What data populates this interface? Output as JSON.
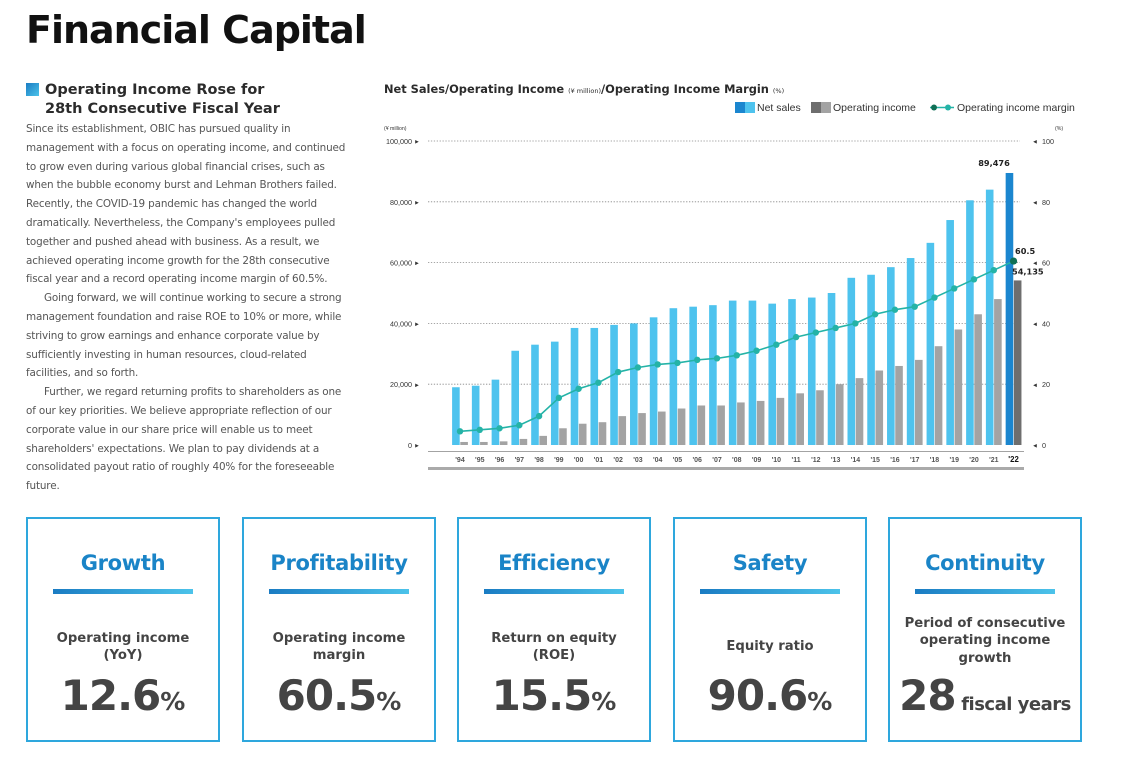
{
  "page": {
    "title": "Financial Capital"
  },
  "section": {
    "heading_line1": "Operating Income Rose for",
    "heading_line2": "28th Consecutive Fiscal Year",
    "paragraph1": "Since its establishment, OBIC has pursued quality in management with a focus on operating income, and continued to grow even during various global financial crises, such as when the bubble economy burst and Lehman Brothers failed. Recently, the COVID-19 pandemic has changed the world dramatically. Nevertheless, the Company's employees pulled together and pushed ahead with business. As a result, we achieved operating income growth for the 28th consecutive fiscal year and a record operating income margin of 60.5%.",
    "paragraph2": "Going forward, we will continue working to secure a strong management foundation and raise ROE to 10% or more, while striving to grow earnings and enhance corporate value by sufficiently investing in human resources, cloud-related facilities, and so forth.",
    "paragraph3": "Further, we regard returning profits to shareholders as one of our key priorities. We believe appropriate reflection of our corporate value in our share price will enable us to meet shareholders' expectations. We plan to pay dividends at a consolidated payout ratio of roughly 40% for the foreseeable future."
  },
  "chart_header": {
    "part1": "Net Sales/Operating Income ",
    "unit1": "(¥ million)",
    "part2": "/Operating Income Margin ",
    "unit2": "(%)"
  },
  "colors": {
    "net_sales": "#4ec3ee",
    "net_sales_latest": "#1b86cf",
    "operating_income": "#a3a3a3",
    "operating_income_latest": "#6e6e6e",
    "margin_line": "#24b3a7",
    "margin_latest": "#0f6f55",
    "axis": "#444444",
    "accent": "#1a84c7"
  },
  "chart_data": {
    "type": "bar",
    "categories": [
      "'94",
      "'95",
      "'96",
      "'97",
      "'98",
      "'99",
      "'00",
      "'01",
      "'02",
      "'03",
      "'04",
      "'05",
      "'06",
      "'07",
      "'08",
      "'09",
      "'10",
      "'11",
      "'12",
      "'13",
      "'14",
      "'15",
      "'16",
      "'17",
      "'18",
      "'19",
      "'20",
      "'21",
      "'22"
    ],
    "series": [
      {
        "name": "Net sales",
        "type": "bar",
        "axis": "left",
        "values": [
          19000,
          19500,
          21500,
          31000,
          33000,
          34000,
          38500,
          38500,
          39500,
          40000,
          42000,
          45000,
          45500,
          46000,
          47500,
          47500,
          46500,
          48000,
          48500,
          50000,
          55000,
          56000,
          58500,
          61500,
          66500,
          74000,
          80500,
          84000,
          89476
        ]
      },
      {
        "name": "Operating income",
        "type": "bar",
        "axis": "left",
        "values": [
          1000,
          1000,
          1200,
          2000,
          3000,
          5500,
          7000,
          7500,
          9500,
          10500,
          11000,
          12000,
          13000,
          13000,
          14000,
          14500,
          15500,
          17000,
          18000,
          20000,
          22000,
          24500,
          26000,
          28000,
          32500,
          38000,
          43000,
          48000,
          54135
        ]
      },
      {
        "name": "Operating income margin",
        "type": "line",
        "axis": "right",
        "values": [
          4.5,
          5,
          5.5,
          6.5,
          9.5,
          15.5,
          18.5,
          20.5,
          24,
          25.5,
          26.5,
          27,
          28,
          28.5,
          29.5,
          31,
          33,
          35.5,
          37,
          38.5,
          40,
          43,
          44.5,
          45.5,
          48.5,
          51.5,
          54.5,
          57.5,
          60.5
        ]
      }
    ],
    "data_labels": {
      "net_sales_last": "89,476",
      "operating_income_last": "54,135",
      "margin_last": "60.5"
    },
    "left_axis": {
      "unit": "(¥ million)",
      "ylim": [
        0,
        100000
      ],
      "ticks": [
        "0",
        "20,000",
        "40,000",
        "60,000",
        "80,000",
        "100,000"
      ]
    },
    "right_axis": {
      "unit": "(%)",
      "ylim": [
        0,
        100
      ],
      "ticks": [
        "0",
        "20",
        "40",
        "60",
        "80",
        "100"
      ]
    },
    "grid": true,
    "legend_position": "top-right"
  },
  "kpis": [
    {
      "title": "Growth",
      "label_lines": [
        "Operating income",
        "(YoY)"
      ],
      "value": "12.6",
      "unit": "%"
    },
    {
      "title": "Profitability",
      "label_lines": [
        "Operating income",
        "margin"
      ],
      "value": "60.5",
      "unit": "%"
    },
    {
      "title": "Efficiency",
      "label_lines": [
        "Return on equity",
        "(ROE)"
      ],
      "value": "15.5",
      "unit": "%"
    },
    {
      "title": "Safety",
      "label_lines": [
        "Equity ratio"
      ],
      "value": "90.6",
      "unit": "%"
    },
    {
      "title": "Continuity",
      "label_lines": [
        "Period of consecutive",
        "operating income",
        "growth"
      ],
      "value": "28",
      "unit": "fiscal years"
    }
  ]
}
